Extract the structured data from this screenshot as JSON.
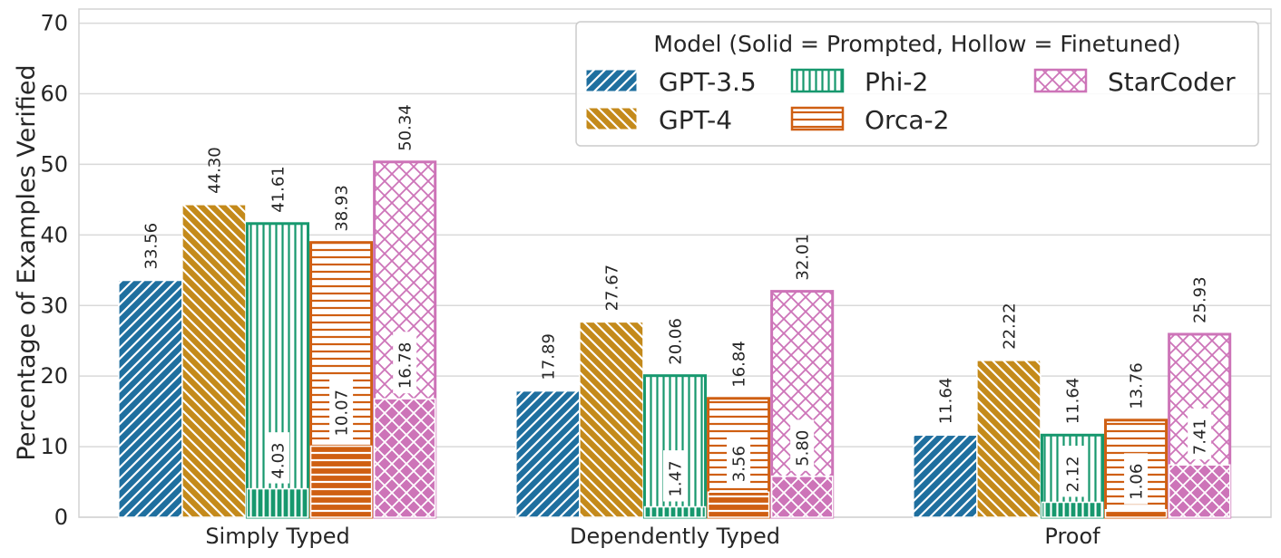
{
  "chart_data": {
    "type": "bar",
    "ylabel": "Percentage of Examples Verified",
    "xlabel": "",
    "ylim": [
      0,
      72
    ],
    "yticks": [
      0,
      10,
      20,
      30,
      40,
      50,
      60,
      70
    ],
    "grid": true,
    "categories": [
      "Simply Typed",
      "Dependently Typed",
      "Proof"
    ],
    "legend": {
      "title": "Model (Solid = Prompted, Hollow = Finetuned)",
      "placement": "top-right",
      "columns": 3
    },
    "series": [
      {
        "name": "GPT-3.5",
        "color": "#1f6f9f",
        "pattern": "diagonal",
        "style": "solid",
        "values": [
          33.56,
          17.89,
          11.64
        ],
        "labels": [
          "33.56",
          "17.89",
          "11.64"
        ]
      },
      {
        "name": "GPT-4",
        "color": "#c48a1b",
        "pattern": "backdiagonal",
        "style": "solid",
        "values": [
          44.3,
          27.67,
          22.22
        ],
        "labels": [
          "44.30",
          "27.67",
          "22.22"
        ]
      },
      {
        "name": "Phi-2",
        "color": "#17986e",
        "pattern": "vertical",
        "style": "hollow",
        "values": [
          41.61,
          20.06,
          11.64
        ],
        "labels": [
          "41.61",
          "20.06",
          "11.64"
        ],
        "prompted_values": [
          4.03,
          1.47,
          2.12
        ],
        "prompted_labels": [
          "4.03",
          "1.47",
          "2.12"
        ]
      },
      {
        "name": "Orca-2",
        "color": "#cf5f12",
        "pattern": "horizontal",
        "style": "hollow",
        "values": [
          38.93,
          16.84,
          13.76
        ],
        "labels": [
          "38.93",
          "16.84",
          "13.76"
        ],
        "prompted_values": [
          10.07,
          3.56,
          1.06
        ],
        "prompted_labels": [
          "10.07",
          "3.56",
          "1.06"
        ]
      },
      {
        "name": "StarCoder",
        "color": "#cd74b8",
        "pattern": "crosshatch",
        "style": "hollow",
        "values": [
          50.34,
          32.01,
          25.93
        ],
        "labels": [
          "50.34",
          "32.01",
          "25.93"
        ],
        "prompted_values": [
          16.78,
          5.8,
          7.41
        ],
        "prompted_labels": [
          "16.78",
          "5.80",
          "7.41"
        ]
      }
    ]
  }
}
